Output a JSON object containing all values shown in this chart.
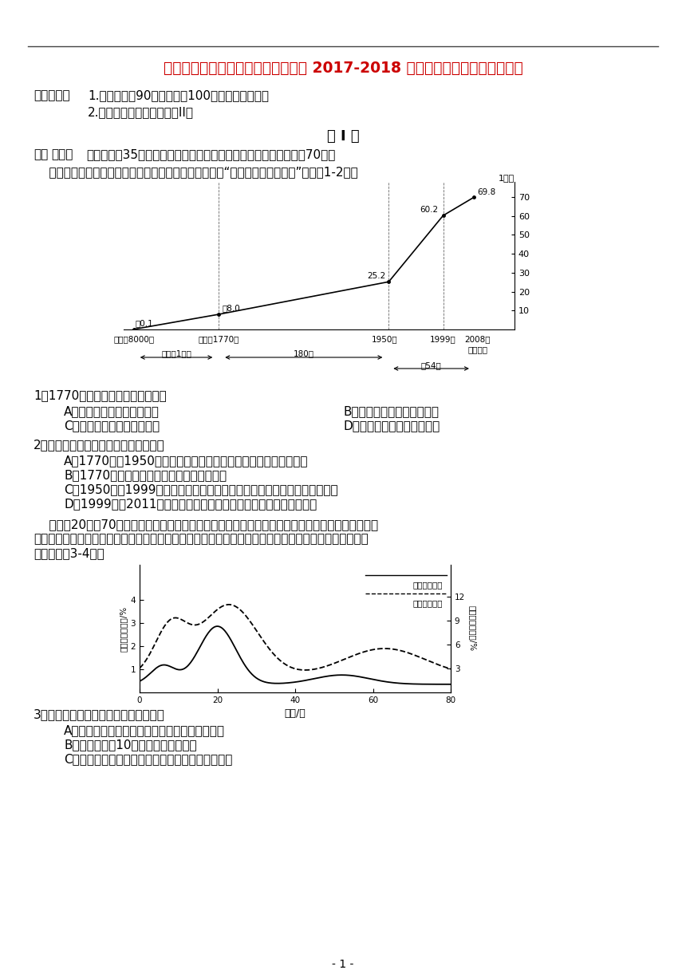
{
  "title": "吉林省长春汽车经济开发区第六中学 2017-2018 学年高一地理下学期期中试题",
  "title_color": "#cc0000",
  "bg_color": "#ffffff",
  "line1": "考试说明：   1.考试时间为90分钟，满分100分，选择题涂卡。",
  "line2": "                 2.考试完毕交答题卡和试卷II。",
  "section_title": "第 I 卷",
  "q1_text": "1．1770年前世界人口发展的特点是",
  "q1_A": "A．低出生、低死亡、低增长",
  "q1_B": "B．高出生、低死亡、高增长",
  "q1_C": "C．高出生、高死亡、低增长",
  "q1_D": "D．低出生、低死亡、负增长",
  "q2_text": "2．关于世界人口增长的叙述，正确的是",
  "q2_A": "A．1770年到1950年间，由于欧美国家出生率提高，人口增长加快",
  "q2_B": "B．1770年前由于出生率太低，人口增长缓慢",
  "q2_C": "C．1950年到1999年，由于发展中国家死亡率下降，人口增长幅度明显加大",
  "q2_D": "D．1999年到2011年，预计世界人口出生率继续提高，人口增长迅猛",
  "intro2a": "    罗吉斯20世纪70年代提出了人口迁移年龄模式。他定义的迁移率是离开某地的迁移人口占该地同期",
  "intro2b": "具有迁移风险的平均人口数的比率，即迁移率就是迁出率。下图为某年我国和美国人口迁移年龄分布图。",
  "intro2c": "读图，完刹3-4题。",
  "q3_text": "3．下列有关两国人口的叙述，正确的是",
  "q3_A": "A．中国人口迁移率峰値比美国早与农村早婚有关",
  "q3_B": "B．中国与美国10岁儿童的迁移量相当",
  "q3_C": "C．美国老年人口迁移的方向是自南部向东北部迁移",
  "page_num": "- 1 -"
}
